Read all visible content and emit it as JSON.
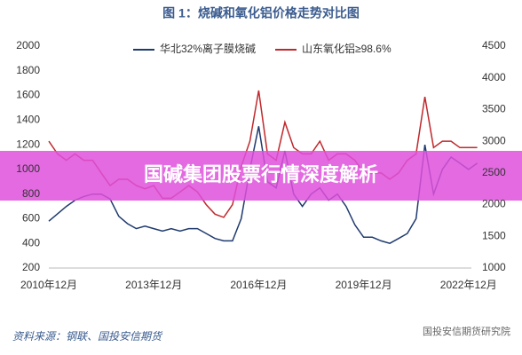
{
  "chart_data": {
    "type": "line",
    "title": "图 1：烧碱和氧化铝价格走势对比图",
    "categories": [
      "2010年12月",
      null,
      null,
      null,
      null,
      null,
      null,
      null,
      null,
      null,
      null,
      null,
      "2013年12月",
      null,
      null,
      null,
      null,
      null,
      null,
      null,
      null,
      null,
      null,
      null,
      "2016年12月",
      null,
      null,
      null,
      null,
      null,
      null,
      null,
      null,
      null,
      null,
      null,
      "2019年12月",
      null,
      null,
      null,
      null,
      null,
      null,
      null,
      null,
      null,
      null,
      null,
      "2022年12月",
      null
    ],
    "series": [
      {
        "name": "华北32%离子膜烧碱",
        "color": "#1f3a6e",
        "axis": "y",
        "values": [
          580,
          640,
          700,
          750,
          780,
          800,
          800,
          760,
          620,
          560,
          520,
          540,
          520,
          500,
          520,
          500,
          520,
          520,
          480,
          440,
          420,
          420,
          600,
          1000,
          1350,
          900,
          850,
          1150,
          800,
          700,
          800,
          850,
          750,
          800,
          700,
          550,
          450,
          450,
          420,
          400,
          440,
          480,
          600,
          1200,
          800,
          1000,
          1100,
          1050,
          1000,
          1050
        ]
      },
      {
        "name": "山东氧化铝≥98.6%",
        "color": "#c0282d",
        "axis": "y2",
        "values": [
          3000,
          2800,
          2700,
          2800,
          2700,
          2700,
          2500,
          2300,
          2400,
          2400,
          2300,
          2250,
          2300,
          2100,
          2100,
          2200,
          2300,
          2200,
          2000,
          1850,
          1800,
          2000,
          2600,
          3000,
          3800,
          2800,
          2700,
          3300,
          2900,
          2800,
          2800,
          3000,
          2700,
          2800,
          2800,
          2700,
          2500,
          2500,
          2500,
          2400,
          2500,
          2700,
          2800,
          3700,
          2900,
          3000,
          3000,
          2900,
          2900,
          2900
        ]
      }
    ],
    "ylim": [
      200,
      2000
    ],
    "yticks": [
      200,
      400,
      600,
      800,
      1000,
      1200,
      1400,
      1600,
      1800,
      2000
    ],
    "y2lim": [
      1000,
      4500
    ],
    "y2ticks": [
      1000,
      1500,
      2000,
      2500,
      3000,
      3500,
      4000,
      4500
    ],
    "grid": false,
    "legend": "top"
  },
  "source": "资料来源：钢联、国投安信期货",
  "watermark": "国投安信期货研究院",
  "banner": "国碱集团股票行情深度解析"
}
